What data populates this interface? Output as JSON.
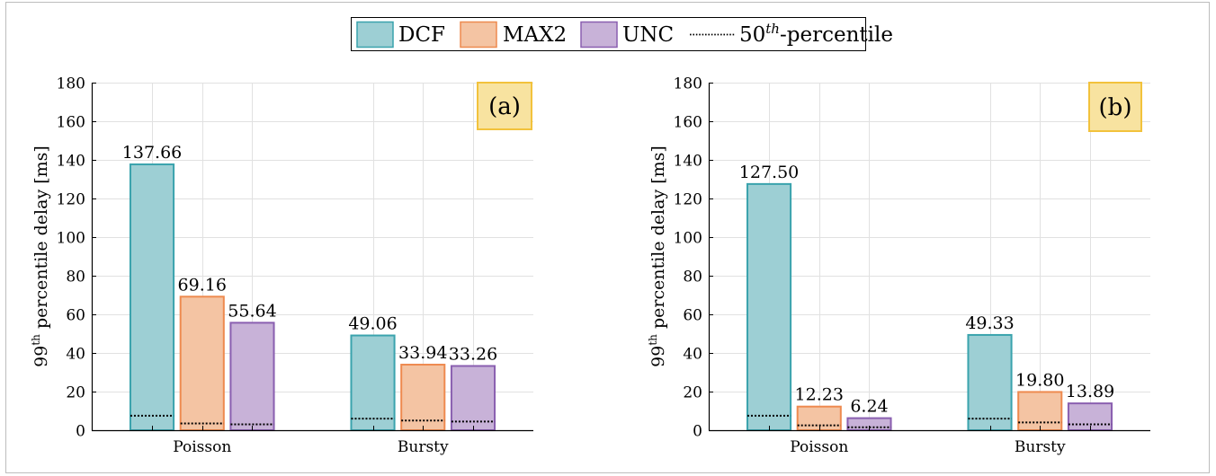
{
  "legend": {
    "items": [
      {
        "label": "DCF",
        "fill": "#9dcfd4",
        "stroke": "#3aa3ad",
        "kind": "patch"
      },
      {
        "label": "MAX2",
        "fill": "#f4c4a3",
        "stroke": "#ee8a4f",
        "kind": "patch"
      },
      {
        "label": "UNC",
        "fill": "#c8b2d8",
        "stroke": "#8a5fb0",
        "kind": "patch"
      },
      {
        "label": "50",
        "sup": "th",
        "suffix": "-percentile",
        "kind": "dotted-line"
      }
    ]
  },
  "chart_data": [
    {
      "type": "bar",
      "panel_label": "(a)",
      "ylabel": "99",
      "ylabel_sup": "th",
      "ylabel_rest": " percentile delay [ms]",
      "categories": [
        "Poisson",
        "Bursty"
      ],
      "ylim": [
        0,
        180
      ],
      "yticks": [
        0,
        20,
        40,
        60,
        80,
        100,
        120,
        140,
        160,
        180
      ],
      "grid": true,
      "series": [
        {
          "name": "DCF",
          "values": [
            137.66,
            49.06
          ],
          "labels": [
            "137.66",
            "49.06"
          ],
          "median": [
            7.5,
            6
          ]
        },
        {
          "name": "MAX2",
          "values": [
            69.16,
            33.94
          ],
          "labels": [
            "69.16",
            "33.94"
          ],
          "median": [
            3.5,
            5
          ]
        },
        {
          "name": "UNC",
          "values": [
            55.64,
            33.26
          ],
          "labels": [
            "55.64",
            "33.26"
          ],
          "median": [
            3,
            4.5
          ]
        }
      ]
    },
    {
      "type": "bar",
      "panel_label": "(b)",
      "ylabel": "99",
      "ylabel_sup": "th",
      "ylabel_rest": " percentile delay [ms]",
      "categories": [
        "Poisson",
        "Bursty"
      ],
      "ylim": [
        0,
        180
      ],
      "yticks": [
        0,
        20,
        40,
        60,
        80,
        100,
        120,
        140,
        160,
        180
      ],
      "grid": true,
      "series": [
        {
          "name": "DCF",
          "values": [
            127.5,
            49.33
          ],
          "labels": [
            "127.50",
            "49.33"
          ],
          "median": [
            7.5,
            6
          ]
        },
        {
          "name": "MAX2",
          "values": [
            12.23,
            19.8
          ],
          "labels": [
            "12.23",
            "19.80"
          ],
          "median": [
            2.5,
            4
          ]
        },
        {
          "name": "UNC",
          "values": [
            6.24,
            13.89
          ],
          "labels": [
            "6.24",
            "13.89"
          ],
          "median": [
            1.5,
            3
          ]
        }
      ]
    }
  ],
  "colors": {
    "panel_box_fill": "#f8e3a0",
    "panel_box_stroke": "#f2c23c",
    "grid": "#e1e1e1"
  }
}
